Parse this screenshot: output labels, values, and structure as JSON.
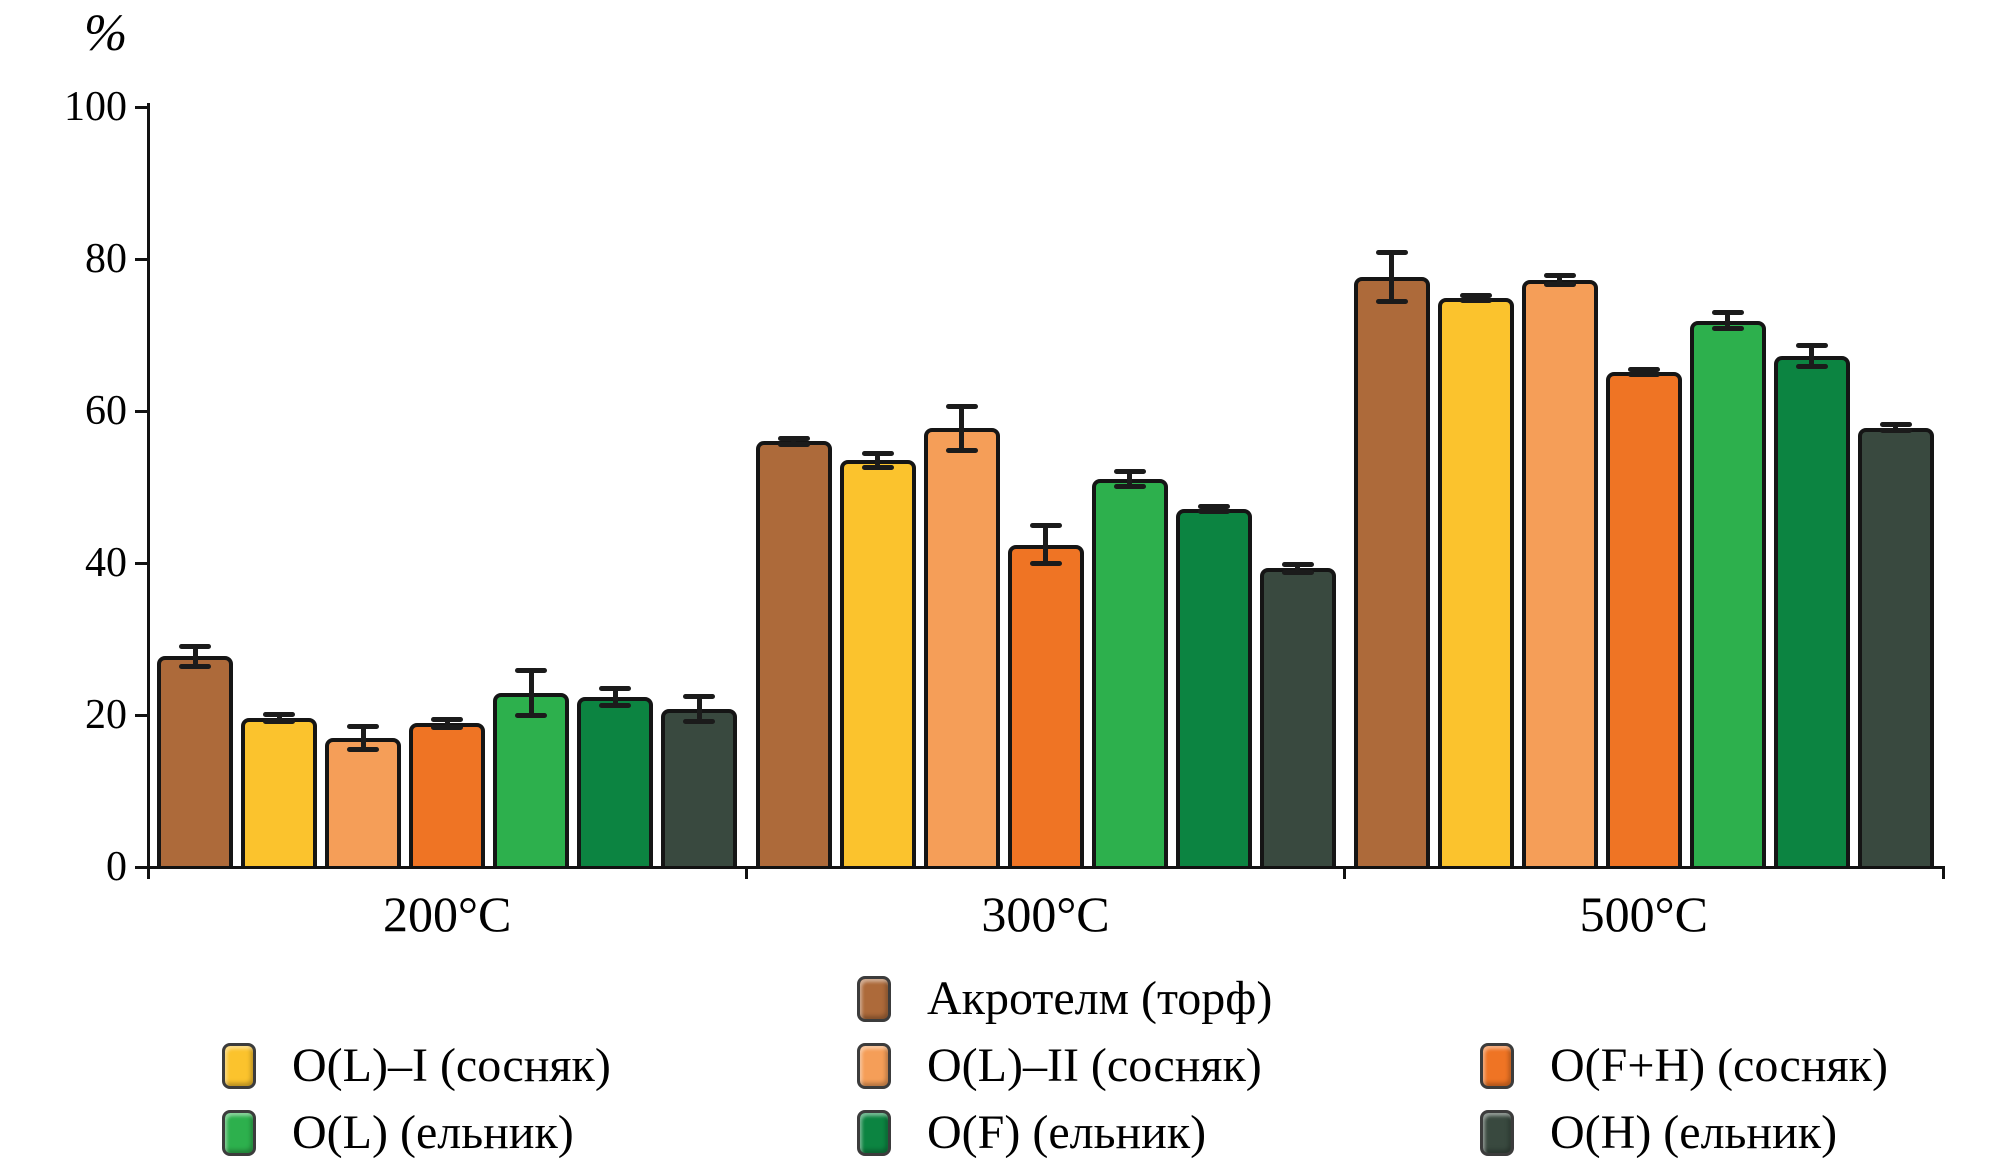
{
  "chart_data": {
    "type": "bar",
    "title": "",
    "xlabel": "",
    "ylabel": "%",
    "ylim": [
      0,
      100
    ],
    "yticks": [
      0,
      20,
      40,
      60,
      80,
      100
    ],
    "grid": false,
    "legend_position": "bottom",
    "error_bars": true,
    "categories": [
      "200°C",
      "300°C",
      "500°C"
    ],
    "series": [
      {
        "name": "Акротелм (торф)",
        "color": "#ad6a3a",
        "values": [
          27.7,
          56.0,
          77.6
        ],
        "errors": [
          1.3,
          0.4,
          3.2
        ]
      },
      {
        "name": "O(L)–I (сосняк)",
        "color": "#fbc32d",
        "values": [
          19.6,
          53.5,
          74.9
        ],
        "errors": [
          0.5,
          0.9,
          0.3
        ]
      },
      {
        "name": "O(L)–II (сосняк)",
        "color": "#f59e58",
        "values": [
          17.0,
          57.7,
          77.2
        ],
        "errors": [
          1.5,
          2.9,
          0.6
        ]
      },
      {
        "name": "O(F+H) (сосняк)",
        "color": "#ef7424",
        "values": [
          18.9,
          42.4,
          65.1
        ],
        "errors": [
          0.5,
          2.5,
          0.3
        ]
      },
      {
        "name": "O(L) (ельник)",
        "color": "#2db04d",
        "values": [
          22.9,
          51.1,
          71.9
        ],
        "errors": [
          3.0,
          1.0,
          1.0
        ]
      },
      {
        "name": "O(F) (ельник)",
        "color": "#0c8441",
        "values": [
          22.4,
          47.1,
          67.2
        ],
        "errors": [
          1.1,
          0.3,
          1.4
        ]
      },
      {
        "name": "O(H) (ельник)",
        "color": "#39493f",
        "values": [
          20.8,
          39.3,
          57.8
        ],
        "errors": [
          1.6,
          0.5,
          0.4
        ]
      }
    ]
  }
}
